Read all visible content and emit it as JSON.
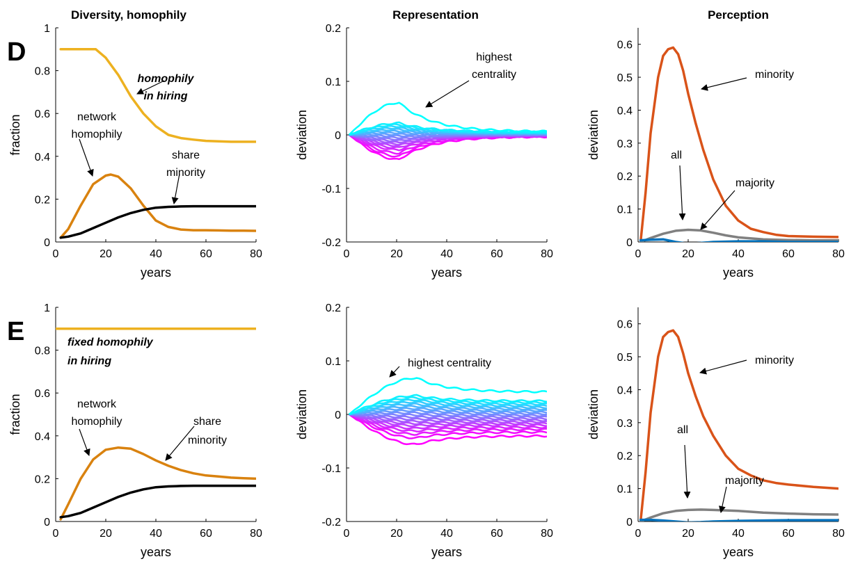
{
  "column_titles": [
    "Diversity, homophily",
    "Representation",
    "Perception"
  ],
  "row_labels": [
    "D",
    "E"
  ],
  "colors": {
    "homophily_hiring": "#EDB120",
    "network_homophily": "#D9820F",
    "share_minority": "#000000",
    "minority": "#D95319",
    "all": "#808080",
    "majority": "#0072BD",
    "centrality_high": "#00FFFF",
    "centrality_low": "#FF00FF"
  },
  "chart_data": [
    {
      "id": "D1",
      "type": "line",
      "xlabel": "years",
      "ylabel": "fraction",
      "xlim": [
        0,
        80
      ],
      "ylim": [
        0,
        1
      ],
      "xticks": [
        "0",
        "20",
        "40",
        "60",
        "80"
      ],
      "yticks": [
        "0",
        "0.2",
        "0.4",
        "0.6",
        "0.8",
        "1"
      ],
      "series": [
        {
          "key": "homophily_hiring",
          "x": [
            2,
            10,
            16,
            20,
            25,
            30,
            35,
            40,
            45,
            50,
            55,
            60,
            65,
            70,
            75,
            80
          ],
          "y": [
            0.9,
            0.9,
            0.9,
            0.86,
            0.78,
            0.68,
            0.6,
            0.54,
            0.5,
            0.485,
            0.478,
            0.472,
            0.47,
            0.468,
            0.468,
            0.468
          ]
        },
        {
          "key": "network_homophily",
          "x": [
            2,
            5,
            10,
            15,
            20,
            22,
            25,
            30,
            35,
            40,
            45,
            50,
            55,
            60,
            65,
            70,
            75,
            80
          ],
          "y": [
            0.02,
            0.06,
            0.17,
            0.27,
            0.31,
            0.315,
            0.305,
            0.25,
            0.17,
            0.1,
            0.07,
            0.058,
            0.055,
            0.055,
            0.054,
            0.053,
            0.053,
            0.052
          ]
        },
        {
          "key": "share_minority",
          "x": [
            2,
            5,
            10,
            15,
            20,
            25,
            30,
            35,
            40,
            45,
            50,
            55,
            60,
            70,
            80
          ],
          "y": [
            0.02,
            0.025,
            0.04,
            0.065,
            0.09,
            0.115,
            0.135,
            0.15,
            0.16,
            0.164,
            0.166,
            0.167,
            0.167,
            0.167,
            0.167
          ]
        }
      ],
      "annotations": [
        "homophily",
        "in hiring",
        "network",
        "homophily",
        "share",
        "minority"
      ]
    },
    {
      "id": "D2",
      "type": "line",
      "family": "representation_D",
      "xlabel": "years",
      "ylabel": "deviation",
      "xlim": [
        0,
        80
      ],
      "ylim": [
        -0.2,
        0.2
      ],
      "xticks": [
        "0",
        "20",
        "40",
        "60",
        "80"
      ],
      "yticks": [
        "-0.2",
        "-0.1",
        "0",
        "0.1",
        "0.2"
      ],
      "peaks": [
        0.06,
        0.022,
        0.019,
        0.016,
        0.013,
        0.01,
        0.007,
        0.004,
        0.001,
        -0.002,
        -0.005,
        -0.008,
        -0.011,
        -0.014,
        -0.017,
        -0.02,
        -0.024,
        -0.028,
        -0.034,
        -0.04,
        -0.046
      ],
      "peak_year": 21,
      "end_offsets": [
        0.006,
        0.005,
        0.005,
        0.004,
        0.004,
        0.003,
        0.003,
        0.002,
        0.002,
        0.001,
        0.001,
        0.0,
        0.0,
        0.0,
        -0.001,
        -0.001,
        -0.001,
        -0.002,
        -0.002,
        -0.002,
        -0.003
      ],
      "annotations": [
        "highest",
        "centrality"
      ]
    },
    {
      "id": "D3",
      "type": "line",
      "xlabel": "years",
      "ylabel": "deviation",
      "xlim": [
        0,
        80
      ],
      "ylim": [
        0,
        0.65
      ],
      "xticks": [
        "0",
        "20",
        "40",
        "60",
        "80"
      ],
      "yticks": [
        "0",
        "0.1",
        "0.2",
        "0.3",
        "0.4",
        "0.5",
        "0.6"
      ],
      "series": [
        {
          "key": "minority",
          "x": [
            1,
            3,
            5,
            8,
            10,
            12,
            14,
            16,
            18,
            20,
            23,
            26,
            30,
            35,
            40,
            45,
            50,
            55,
            60,
            70,
            80
          ],
          "y": [
            0.0,
            0.15,
            0.33,
            0.5,
            0.565,
            0.585,
            0.59,
            0.57,
            0.52,
            0.45,
            0.36,
            0.28,
            0.19,
            0.11,
            0.065,
            0.04,
            0.03,
            0.022,
            0.018,
            0.016,
            0.015
          ]
        },
        {
          "key": "all",
          "x": [
            1,
            5,
            10,
            15,
            20,
            25,
            30,
            35,
            40,
            50,
            60,
            70,
            80
          ],
          "y": [
            0.0,
            0.012,
            0.025,
            0.034,
            0.037,
            0.035,
            0.028,
            0.02,
            0.014,
            0.008,
            0.006,
            0.005,
            0.005
          ]
        },
        {
          "key": "majority",
          "x": [
            1,
            5,
            10,
            15,
            20,
            25,
            30,
            40,
            50,
            60,
            70,
            80
          ],
          "y": [
            0.005,
            0.007,
            0.008,
            0.0,
            -0.005,
            -0.003,
            0.0,
            0.002,
            0.002,
            0.0,
            0.0,
            0.0
          ]
        }
      ],
      "annotations": [
        "minority",
        "all",
        "majority"
      ]
    },
    {
      "id": "E1",
      "type": "line",
      "xlabel": "years",
      "ylabel": "fraction",
      "xlim": [
        0,
        80
      ],
      "ylim": [
        0,
        1
      ],
      "xticks": [
        "0",
        "20",
        "40",
        "60",
        "80"
      ],
      "yticks": [
        "0",
        "0.2",
        "0.4",
        "0.6",
        "0.8",
        "1"
      ],
      "series": [
        {
          "key": "homophily_hiring",
          "x": [
            0,
            80
          ],
          "y": [
            0.9,
            0.9
          ]
        },
        {
          "key": "network_homophily",
          "x": [
            2,
            5,
            10,
            15,
            20,
            25,
            30,
            35,
            40,
            45,
            50,
            55,
            60,
            65,
            70,
            75,
            80
          ],
          "y": [
            0.01,
            0.08,
            0.2,
            0.29,
            0.335,
            0.345,
            0.34,
            0.315,
            0.285,
            0.26,
            0.24,
            0.225,
            0.215,
            0.21,
            0.205,
            0.202,
            0.2
          ]
        },
        {
          "key": "share_minority",
          "x": [
            2,
            5,
            10,
            15,
            20,
            25,
            30,
            35,
            40,
            45,
            50,
            55,
            60,
            70,
            80
          ],
          "y": [
            0.02,
            0.025,
            0.04,
            0.065,
            0.09,
            0.115,
            0.135,
            0.15,
            0.16,
            0.164,
            0.166,
            0.167,
            0.167,
            0.167,
            0.167
          ]
        }
      ],
      "annotations": [
        "fixed homophily",
        "in hiring",
        "network",
        "homophily",
        "share",
        "minority"
      ]
    },
    {
      "id": "E2",
      "type": "line",
      "family": "representation_E",
      "xlabel": "years",
      "ylabel": "deviation",
      "xlim": [
        0,
        80
      ],
      "ylim": [
        -0.2,
        0.2
      ],
      "xticks": [
        "0",
        "20",
        "40",
        "60",
        "80"
      ],
      "yticks": [
        "-0.2",
        "-0.1",
        "0",
        "0.1",
        "0.2"
      ],
      "peaks": [
        0.068,
        0.035,
        0.031,
        0.027,
        0.023,
        0.019,
        0.015,
        0.011,
        0.007,
        0.003,
        -0.001,
        -0.005,
        -0.009,
        -0.013,
        -0.017,
        -0.021,
        -0.026,
        -0.031,
        -0.037,
        -0.044,
        -0.056
      ],
      "peak_year": 28,
      "end_offsets": [
        0.042,
        0.025,
        0.022,
        0.019,
        0.016,
        0.013,
        0.01,
        0.007,
        0.004,
        0.001,
        -0.002,
        -0.005,
        -0.008,
        -0.011,
        -0.014,
        -0.017,
        -0.02,
        -0.024,
        -0.028,
        -0.033,
        -0.04
      ],
      "annotations": [
        "highest centrality"
      ]
    },
    {
      "id": "E3",
      "type": "line",
      "xlabel": "years",
      "ylabel": "deviation",
      "xlim": [
        0,
        80
      ],
      "ylim": [
        0,
        0.65
      ],
      "xticks": [
        "0",
        "20",
        "40",
        "60",
        "80"
      ],
      "yticks": [
        "0",
        "0.1",
        "0.2",
        "0.3",
        "0.4",
        "0.5",
        "0.6"
      ],
      "series": [
        {
          "key": "minority",
          "x": [
            1,
            3,
            5,
            8,
            10,
            12,
            14,
            16,
            18,
            20,
            23,
            26,
            30,
            35,
            40,
            45,
            50,
            55,
            60,
            70,
            80
          ],
          "y": [
            0.0,
            0.15,
            0.33,
            0.5,
            0.56,
            0.575,
            0.58,
            0.56,
            0.51,
            0.45,
            0.38,
            0.32,
            0.26,
            0.2,
            0.16,
            0.14,
            0.125,
            0.117,
            0.112,
            0.105,
            0.1
          ]
        },
        {
          "key": "all",
          "x": [
            1,
            5,
            10,
            15,
            20,
            25,
            30,
            40,
            50,
            60,
            70,
            80
          ],
          "y": [
            0.0,
            0.012,
            0.025,
            0.032,
            0.035,
            0.036,
            0.035,
            0.032,
            0.027,
            0.024,
            0.022,
            0.021
          ]
        },
        {
          "key": "majority",
          "x": [
            1,
            5,
            10,
            15,
            20,
            25,
            30,
            40,
            50,
            60,
            70,
            80
          ],
          "y": [
            0.005,
            0.005,
            0.003,
            0.0,
            -0.003,
            -0.002,
            0.0,
            0.002,
            0.003,
            0.004,
            0.004,
            0.004
          ]
        }
      ],
      "annotations": [
        "minority",
        "all",
        "majority"
      ]
    }
  ]
}
